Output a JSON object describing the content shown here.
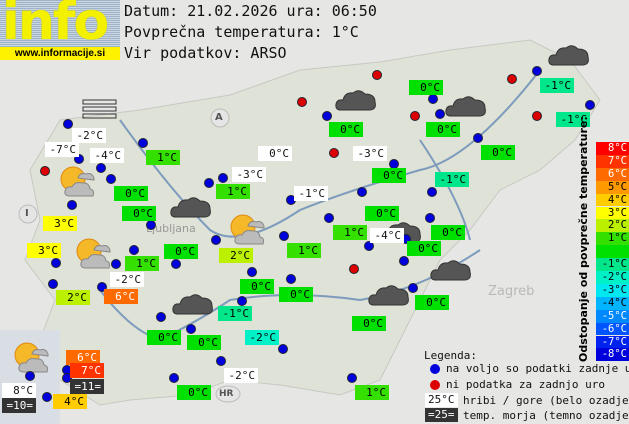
{
  "logo": {
    "text": "info",
    "url": "www.informacije.si"
  },
  "header": {
    "date_line": "Datum: 21.02.2026 ura: 06:50",
    "avg_line": "Povprečna temperatura: 1°C",
    "source_line": "Vir podatkov: ARSO"
  },
  "map_labels": {
    "austria": "A",
    "italy": "I",
    "croatia": "HR",
    "ljubljana": "Ljubljana",
    "zagreb": "Zagreb"
  },
  "colors": {
    "station_ok": "#0000dd",
    "station_missing": "#dd0000",
    "mountain_bg": "#ffffff",
    "sea_bg": "#333333"
  },
  "stations": [
    {
      "text": "-2°C",
      "kind": "mountain"
    },
    {
      "text": "-7°C",
      "kind": "mountain"
    },
    {
      "text": "-4°C",
      "kind": "mountain"
    },
    {
      "text": "1°C",
      "dev": 1
    },
    {
      "text": "0°C",
      "kind": "mountain"
    },
    {
      "text": "-3°C",
      "kind": "mountain"
    },
    {
      "text": "1°C",
      "dev": 1
    },
    {
      "text": "0°C",
      "dev": 0
    },
    {
      "text": "0°C",
      "dev": 0
    },
    {
      "text": "3°C",
      "dev": 3
    },
    {
      "text": "3°C",
      "dev": 3
    },
    {
      "text": "0°C",
      "dev": 0
    },
    {
      "text": "2°C",
      "dev": 2
    },
    {
      "text": "1°C",
      "dev": 1
    },
    {
      "text": "-1°C",
      "kind": "mountain"
    },
    {
      "text": "0°C",
      "dev": 0
    },
    {
      "text": "-1°C",
      "dev": -1
    },
    {
      "text": "-1°C",
      "dev": -1
    },
    {
      "text": "0°C",
      "dev": 0
    },
    {
      "text": "0°C",
      "dev": 0
    },
    {
      "text": "-3°C",
      "kind": "mountain"
    },
    {
      "text": "0°C",
      "dev": 0
    },
    {
      "text": "0°C",
      "dev": 0
    },
    {
      "text": "-1°C",
      "dev": -1
    },
    {
      "text": "0°C",
      "dev": 0
    },
    {
      "text": "1°C",
      "dev": 1
    },
    {
      "text": "-4°C",
      "kind": "mountain"
    },
    {
      "text": "0°C",
      "dev": 0
    },
    {
      "text": "0°C",
      "dev": 0
    },
    {
      "text": "1°C",
      "dev": 1
    },
    {
      "text": "-2°C",
      "kind": "mountain"
    },
    {
      "text": "2°C",
      "dev": 2
    },
    {
      "text": "6°C",
      "dev": 6
    },
    {
      "text": "0°C",
      "dev": 0
    },
    {
      "text": "0°C",
      "dev": 0
    },
    {
      "text": "-1°C",
      "dev": -1
    },
    {
      "text": "0°C",
      "dev": 0
    },
    {
      "text": "0°C",
      "dev": 0
    },
    {
      "text": "-2°C",
      "dev": -2
    },
    {
      "text": "0°C",
      "dev": 0
    },
    {
      "text": "0°C",
      "dev": 0
    },
    {
      "text": "6°C",
      "dev": 6
    },
    {
      "text": "7°C",
      "dev": 7
    },
    {
      "text": "=11=",
      "kind": "sea"
    },
    {
      "text": "8°C",
      "kind": "mountain"
    },
    {
      "text": "=10=",
      "kind": "sea"
    },
    {
      "text": "4°C",
      "dev": 4
    },
    {
      "text": "-2°C",
      "kind": "mountain"
    },
    {
      "text": "0°C",
      "dev": 0
    },
    {
      "text": "1°C",
      "dev": 1
    }
  ],
  "scale": {
    "title": "Odstopanje od povprečne temperature:",
    "steps": [
      {
        "label": "8°C",
        "color": "#ff0000",
        "text": "#fff"
      },
      {
        "label": "7°C",
        "color": "#ff3300",
        "text": "#fff"
      },
      {
        "label": "6°C",
        "color": "#ff6a00",
        "text": "#fff"
      },
      {
        "label": "5°C",
        "color": "#ff9900",
        "text": "#000"
      },
      {
        "label": "4°C",
        "color": "#ffcc00",
        "text": "#000"
      },
      {
        "label": "3°C",
        "color": "#ffff00",
        "text": "#000"
      },
      {
        "label": "2°C",
        "color": "#bbf000",
        "text": "#000"
      },
      {
        "label": "1°C",
        "color": "#33e000",
        "text": "#000"
      },
      {
        "label": "",
        "color": "#00e000",
        "text": "#000"
      },
      {
        "label": "-1°C",
        "color": "#00e68a",
        "text": "#000"
      },
      {
        "label": "-2°C",
        "color": "#00f0c8",
        "text": "#000"
      },
      {
        "label": "-3°C",
        "color": "#00e8f0",
        "text": "#000"
      },
      {
        "label": "-4°C",
        "color": "#00b4ff",
        "text": "#000"
      },
      {
        "label": "-5°C",
        "color": "#0088ff",
        "text": "#fff"
      },
      {
        "label": "-6°C",
        "color": "#0055ff",
        "text": "#fff"
      },
      {
        "label": "-7°C",
        "color": "#0022ee",
        "text": "#fff"
      },
      {
        "label": "-8°C",
        "color": "#0000dd",
        "text": "#fff"
      }
    ]
  },
  "legend": {
    "title": "Legenda:",
    "ok": "na voljo so podatki zadnje ure",
    "missing": "ni podatka za zadnjo uro",
    "mountain_sample": "25°C",
    "mountain_text": "hribi / gore (belo ozadje)",
    "sea_sample": "=25=",
    "sea_text": "temp. morja (temno ozadje)"
  }
}
